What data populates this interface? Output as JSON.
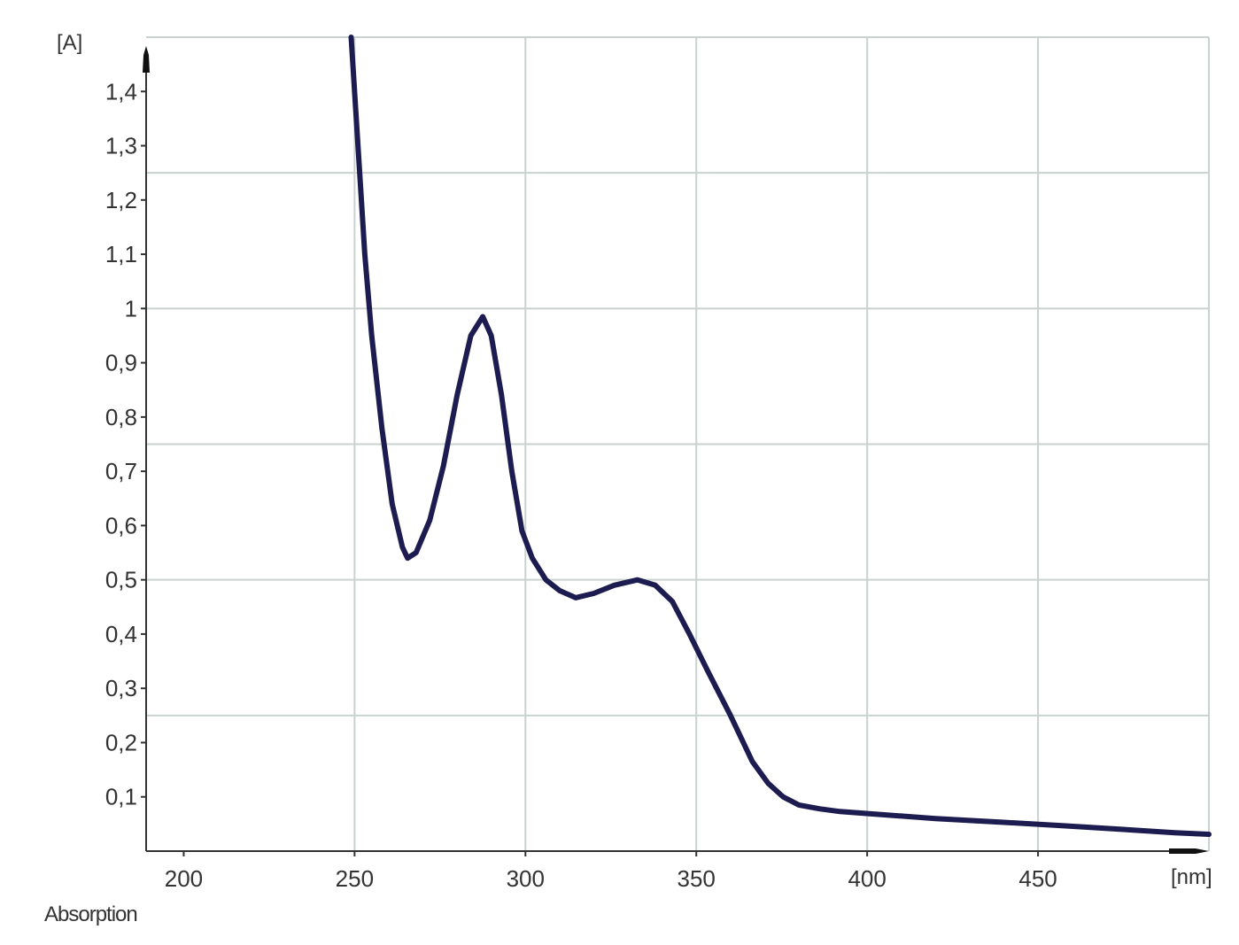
{
  "chart_data": {
    "type": "line",
    "title": "",
    "xlabel": "Absorption",
    "x_unit": "[nm]",
    "y_unit": "[A]",
    "xlim": [
      189,
      500
    ],
    "ylim": [
      0,
      1.5
    ],
    "grid": true,
    "x_ticks": [
      200,
      250,
      300,
      350,
      400,
      450
    ],
    "x_tick_labels": [
      "200",
      "250",
      "300",
      "350",
      "400",
      "450"
    ],
    "y_ticks": [
      0.1,
      0.2,
      0.3,
      0.4,
      0.5,
      0.6,
      0.7,
      0.8,
      0.9,
      1.0,
      1.1,
      1.2,
      1.3,
      1.4
    ],
    "y_tick_labels": [
      "0,1",
      "0,2",
      "0,3",
      "0,4",
      "0,5",
      "0,6",
      "0,7",
      "0,8",
      "0,9",
      "1",
      "1,1",
      "1,2",
      "1,3",
      "1,4"
    ],
    "x_gridlines": [
      250,
      300,
      350,
      400,
      450,
      500
    ],
    "y_gridlines": [
      0.25,
      0.5,
      0.75,
      1.0,
      1.25,
      1.5
    ],
    "colors": {
      "line": "#1c1c50",
      "grid": "#c9d2ce",
      "axis": "#333333"
    },
    "series": [
      {
        "x": [
          249,
          251,
          253,
          255,
          258,
          261,
          264,
          265.5,
          268,
          272,
          276,
          280,
          284,
          287.5,
          290,
          293,
          296,
          299,
          302,
          306,
          310,
          314.7,
          320,
          326,
          332.8,
          338,
          343,
          348,
          353.5,
          360,
          366.4,
          371,
          375.4,
          380,
          386,
          392,
          405,
          420,
          440,
          457,
          475,
          490,
          500
        ],
        "y": [
          1.5,
          1.3,
          1.1,
          0.95,
          0.78,
          0.64,
          0.56,
          0.54,
          0.55,
          0.61,
          0.71,
          0.84,
          0.95,
          0.985,
          0.95,
          0.84,
          0.7,
          0.59,
          0.54,
          0.5,
          0.48,
          0.467,
          0.475,
          0.49,
          0.5,
          0.49,
          0.46,
          0.4,
          0.33,
          0.25,
          0.165,
          0.125,
          0.1,
          0.085,
          0.078,
          0.073,
          0.067,
          0.06,
          0.053,
          0.047,
          0.04,
          0.034,
          0.031
        ]
      }
    ]
  }
}
